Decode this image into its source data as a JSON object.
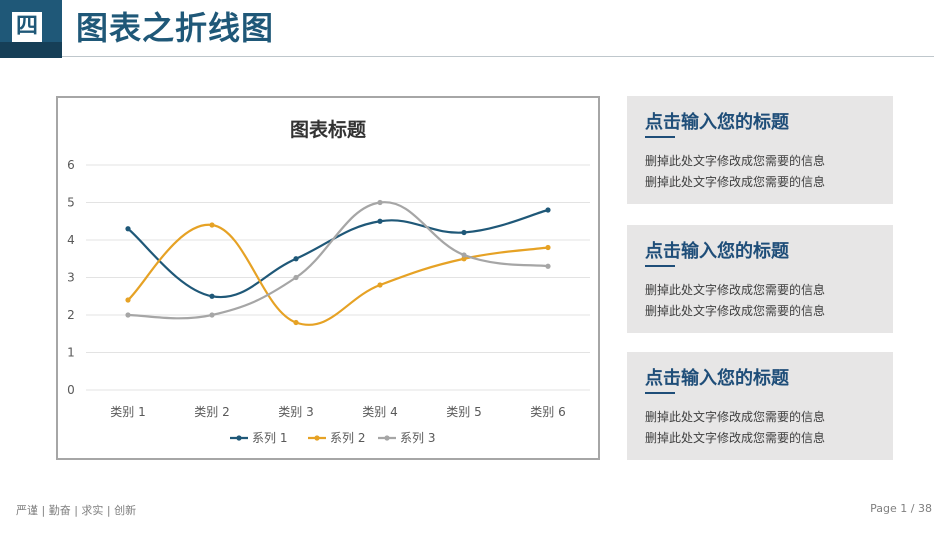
{
  "header": {
    "badge": "四",
    "title": "图表之折线图"
  },
  "chart_data": {
    "type": "line",
    "title": "图表标题",
    "categories": [
      "类别 1",
      "类别 2",
      "类别 3",
      "类别 4",
      "类别 5",
      "类别 6"
    ],
    "ylim": [
      0,
      6
    ],
    "yticks": [
      "0",
      "1",
      "2",
      "3",
      "4",
      "5",
      "6"
    ],
    "grid": true,
    "smooth": true,
    "legend": "bottom",
    "series": [
      {
        "name": "系列 1",
        "values": [
          4.3,
          2.5,
          3.5,
          4.5,
          4.2,
          4.8
        ],
        "color": "#1f5878"
      },
      {
        "name": "系列 2",
        "values": [
          2.4,
          4.4,
          1.8,
          2.8,
          3.5,
          3.8
        ],
        "color": "#e6a225"
      },
      {
        "name": "系列 3",
        "values": [
          2.0,
          2.0,
          3.0,
          5.0,
          3.6,
          3.3
        ],
        "color": "#a6a6a6"
      }
    ]
  },
  "cards": [
    {
      "title": "点击输入您的标题",
      "lines": [
        "删掉此处文字修改成您需要的信息",
        "删掉此处文字修改成您需要的信息"
      ]
    },
    {
      "title": "点击输入您的标题",
      "lines": [
        "删掉此处文字修改成您需要的信息",
        "删掉此处文字修改成您需要的信息"
      ]
    },
    {
      "title": "点击输入您的标题",
      "lines": [
        "删掉此处文字修改成您需要的信息",
        "删掉此处文字修改成您需要的信息"
      ]
    }
  ],
  "footer": {
    "motto": "严谨 | 勤奋 | 求实 | 创新",
    "page": "Page 1 / 38"
  },
  "colors": {
    "brand": "#1f5878",
    "card_bg": "#e7e6e6",
    "card_title": "#1f4e79"
  }
}
